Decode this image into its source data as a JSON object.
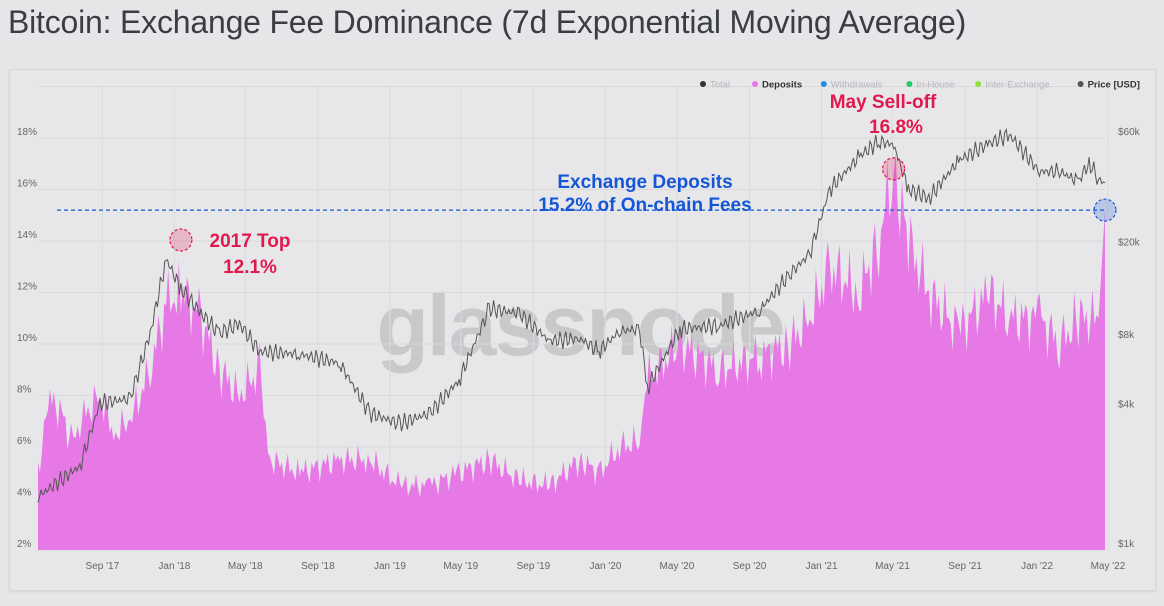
{
  "title": "Bitcoin: Exchange Fee Dominance (7d Exponential Moving Average)",
  "colors": {
    "deposits": "#e679e6",
    "price": "#555555",
    "red": "#e0194f",
    "blue": "#1556d6",
    "total": "#333333",
    "withdrawals": "#1e8fe0",
    "inhouse": "#1fcf6a",
    "interexchange": "#8fe03a"
  },
  "chart_data": {
    "type": "area",
    "title": "Bitcoin: Exchange Fee Dominance (7d Exponential Moving Average)",
    "x_range": [
      "2017-05-15",
      "2022-04-26"
    ],
    "y_left": {
      "range": [
        2,
        20
      ],
      "ticks": [
        2,
        4,
        6,
        8,
        10,
        12,
        14,
        16,
        18
      ],
      "tick_labels": [
        "2%",
        "4%",
        "6%",
        "8%",
        "10%",
        "12%",
        "14%",
        "16%",
        "18%"
      ]
    },
    "y_right": {
      "scale": "log",
      "range": [
        1000,
        60000
      ],
      "ticks": [
        1000,
        4000,
        8000,
        20000,
        60000
      ],
      "tick_labels": [
        "$1k",
        "$4k",
        "$8k",
        "$20k",
        "$60k"
      ]
    },
    "x_ticks": [
      {
        "date": "2017-09-01",
        "label": "Sep '17"
      },
      {
        "date": "2018-01-01",
        "label": "Jan '18"
      },
      {
        "date": "2018-05-01",
        "label": "May '18"
      },
      {
        "date": "2018-09-01",
        "label": "Sep '18"
      },
      {
        "date": "2019-01-01",
        "label": "Jan '19"
      },
      {
        "date": "2019-05-01",
        "label": "May '19"
      },
      {
        "date": "2019-09-01",
        "label": "Sep '19"
      },
      {
        "date": "2020-01-01",
        "label": "Jan '20"
      },
      {
        "date": "2020-05-01",
        "label": "May '20"
      },
      {
        "date": "2020-09-01",
        "label": "Sep '20"
      },
      {
        "date": "2021-01-01",
        "label": "Jan '21"
      },
      {
        "date": "2021-05-01",
        "label": "May '21"
      },
      {
        "date": "2021-09-01",
        "label": "Sep '21"
      },
      {
        "date": "2022-01-01",
        "label": "Jan '22"
      },
      {
        "date": "2022-05-01",
        "label": "May '22"
      }
    ],
    "legend": {
      "placement": "top-right",
      "entries": [
        {
          "label": "Total",
          "active": false,
          "color_key": "total"
        },
        {
          "label": "Deposits",
          "active": true,
          "color_key": "deposits"
        },
        {
          "label": "Withdrawals",
          "active": false,
          "color_key": "withdrawals"
        },
        {
          "label": "In-House",
          "active": false,
          "color_key": "inhouse"
        },
        {
          "label": "Inter-Exchange",
          "active": false,
          "color_key": "interexchange"
        },
        {
          "label": "Price [USD]",
          "active": true,
          "color_key": "price"
        }
      ]
    },
    "series": [
      {
        "name": "Deposits",
        "axis": "left",
        "unit": "%",
        "points": [
          [
            "2017-05-15",
            5
          ],
          [
            "2017-06-01",
            7.8
          ],
          [
            "2017-06-21",
            7.5
          ],
          [
            "2017-07-10",
            6.2
          ],
          [
            "2017-07-25",
            7
          ],
          [
            "2017-08-28",
            8
          ],
          [
            "2017-09-20",
            6.5
          ],
          [
            "2017-10-18",
            7
          ],
          [
            "2017-11-21",
            9
          ],
          [
            "2017-12-18",
            11.5
          ],
          [
            "2018-01-12",
            12.1
          ],
          [
            "2018-02-15",
            11
          ],
          [
            "2018-03-18",
            9
          ],
          [
            "2018-04-21",
            8
          ],
          [
            "2018-05-25",
            9
          ],
          [
            "2018-06-12",
            5.5
          ],
          [
            "2018-08-01",
            5
          ],
          [
            "2018-10-08",
            5.5
          ],
          [
            "2018-11-28",
            5.5
          ],
          [
            "2019-01-18",
            4.5
          ],
          [
            "2019-03-10",
            4.5
          ],
          [
            "2019-04-28",
            5
          ],
          [
            "2019-06-18",
            5.5
          ],
          [
            "2019-08-08",
            4.7
          ],
          [
            "2019-09-28",
            4.5
          ],
          [
            "2019-11-18",
            5.5
          ],
          [
            "2019-12-21",
            5
          ],
          [
            "2020-01-25",
            6
          ],
          [
            "2020-02-28",
            6.2
          ],
          [
            "2020-03-08",
            8.5
          ],
          [
            "2020-05-06",
            10
          ],
          [
            "2020-07-12",
            9
          ],
          [
            "2020-09-18",
            9.5
          ],
          [
            "2020-11-08",
            10
          ],
          [
            "2020-12-12",
            11
          ],
          [
            "2021-01-15",
            13
          ],
          [
            "2021-03-06",
            12
          ],
          [
            "2021-04-08",
            14
          ],
          [
            "2021-05-03",
            16.8
          ],
          [
            "2021-05-28",
            14
          ],
          [
            "2021-07-02",
            12
          ],
          [
            "2021-08-21",
            10.5
          ],
          [
            "2021-10-12",
            12
          ],
          [
            "2021-11-15",
            11
          ],
          [
            "2022-01-05",
            11
          ],
          [
            "2022-02-08",
            10
          ],
          [
            "2022-03-12",
            11
          ],
          [
            "2022-04-15",
            11
          ],
          [
            "2022-04-26",
            15.2
          ]
        ]
      },
      {
        "name": "Price [USD]",
        "axis": "right",
        "unit": "USD",
        "points": [
          [
            "2017-05-15",
            1700
          ],
          [
            "2017-07-25",
            2300
          ],
          [
            "2017-08-28",
            4300
          ],
          [
            "2017-10-18",
            4500
          ],
          [
            "2017-11-21",
            8600
          ],
          [
            "2017-12-18",
            18000
          ],
          [
            "2018-01-12",
            13400
          ],
          [
            "2018-02-15",
            10500
          ],
          [
            "2018-03-18",
            8600
          ],
          [
            "2018-04-21",
            9500
          ],
          [
            "2018-05-25",
            7200
          ],
          [
            "2018-08-01",
            7000
          ],
          [
            "2018-10-08",
            6400
          ],
          [
            "2018-11-28",
            3900
          ],
          [
            "2019-01-18",
            3500
          ],
          [
            "2019-03-10",
            3900
          ],
          [
            "2019-04-28",
            5400
          ],
          [
            "2019-06-18",
            11000
          ],
          [
            "2019-08-08",
            10500
          ],
          [
            "2019-09-28",
            8000
          ],
          [
            "2019-11-18",
            8200
          ],
          [
            "2019-12-21",
            7200
          ],
          [
            "2020-01-25",
            8800
          ],
          [
            "2020-02-28",
            9000
          ],
          [
            "2020-03-12",
            5000
          ],
          [
            "2020-05-06",
            9000
          ],
          [
            "2020-07-12",
            9300
          ],
          [
            "2020-09-18",
            10800
          ],
          [
            "2020-11-08",
            15500
          ],
          [
            "2020-12-12",
            19000
          ],
          [
            "2021-01-15",
            36000
          ],
          [
            "2021-03-06",
            50000
          ],
          [
            "2021-04-08",
            58000
          ],
          [
            "2021-05-03",
            56000
          ],
          [
            "2021-05-28",
            36000
          ],
          [
            "2021-07-02",
            33000
          ],
          [
            "2021-08-21",
            48000
          ],
          [
            "2021-10-12",
            57000
          ],
          [
            "2021-11-15",
            62000
          ],
          [
            "2022-01-05",
            43000
          ],
          [
            "2022-02-08",
            43000
          ],
          [
            "2022-03-12",
            39000
          ],
          [
            "2022-03-30",
            47000
          ],
          [
            "2022-04-15",
            40000
          ],
          [
            "2022-04-26",
            38500
          ]
        ]
      }
    ],
    "annotations": [
      {
        "label": "2017 Top",
        "value": "12.1%",
        "date": "2018-01-12",
        "y": 12.1,
        "color_key": "red"
      },
      {
        "label": "May Sell-off",
        "value": "16.8%",
        "date": "2021-05-03",
        "y": 16.8,
        "color_key": "red"
      },
      {
        "label": "Exchange Deposits",
        "value": "15.2% of On-chain Fees",
        "date": "2022-04-26",
        "y": 15.2,
        "color_key": "blue",
        "reference_line": 15.2
      }
    ],
    "watermark": "glassnode"
  }
}
